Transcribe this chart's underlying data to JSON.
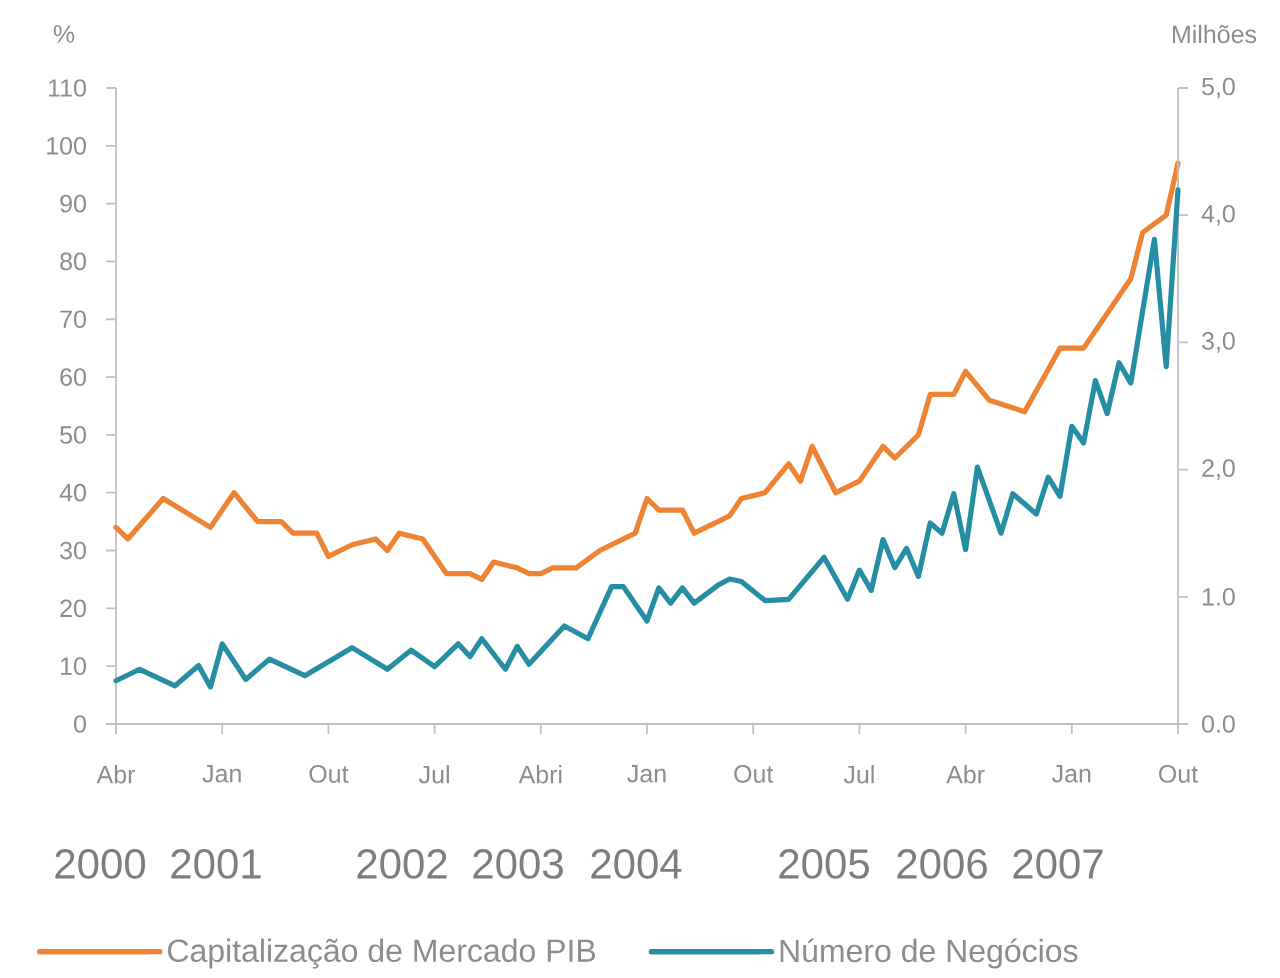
{
  "chart_data": {
    "type": "line",
    "ylabel": "%",
    "y2label": "Milhões",
    "xlim": [
      "2000-04",
      "2007-10"
    ],
    "xticks": [
      {
        "value": "2000-04",
        "label": "Abr"
      },
      {
        "value": "2001-01",
        "label": "Jan"
      },
      {
        "value": "2001-10",
        "label": "Out"
      },
      {
        "value": "2002-07",
        "label": "Jul"
      },
      {
        "value": "2003-04",
        "label": "Abri"
      },
      {
        "value": "2004-01",
        "label": "Jan"
      },
      {
        "value": "2004-10",
        "label": "Out"
      },
      {
        "value": "2005-07",
        "label": "Jul"
      },
      {
        "value": "2006-04",
        "label": "Abr"
      },
      {
        "value": "2007-01",
        "label": "Jan"
      },
      {
        "value": "2007-10",
        "label": "Out"
      }
    ],
    "ylim": [
      0,
      110
    ],
    "yticks": [
      0,
      10,
      20,
      30,
      40,
      50,
      60,
      70,
      80,
      90,
      100,
      110
    ],
    "y2lim": [
      0,
      5
    ],
    "y2ticks": [
      {
        "value": 0,
        "label": "0.0"
      },
      {
        "value": 1,
        "label": "1.0"
      },
      {
        "value": 2,
        "label": "2,0"
      },
      {
        "value": 3,
        "label": "3,0"
      },
      {
        "value": 4,
        "label": "4,0"
      },
      {
        "value": 5,
        "label": "5,0"
      }
    ],
    "annotations": [
      "2000",
      "2001",
      "2002",
      "2003",
      "2004",
      "2005",
      "2006",
      "2007"
    ],
    "legend": "bottom",
    "series": [
      {
        "name": "Capitalização de Mercado PIB",
        "color": "#ee8433",
        "x": [
          "2000-04",
          "2000-05",
          "2000-08",
          "2000-12",
          "2001-02",
          "2001-04",
          "2001-06",
          "2001-07",
          "2001-09",
          "2001-10",
          "2001-12",
          "2002-02",
          "2002-03",
          "2002-04",
          "2002-06",
          "2002-08",
          "2002-10",
          "2002-11",
          "2002-12",
          "2003-02",
          "2003-03",
          "2003-04",
          "2003-05",
          "2003-07",
          "2003-09",
          "2003-10",
          "2003-12",
          "2004-01",
          "2004-02",
          "2004-04",
          "2004-05",
          "2004-08",
          "2004-09",
          "2004-11",
          "2005-01",
          "2005-02",
          "2005-03",
          "2005-05",
          "2005-07",
          "2005-09",
          "2005-10",
          "2005-12",
          "2006-01",
          "2006-03",
          "2006-04",
          "2006-06",
          "2006-09",
          "2006-12",
          "2007-02",
          "2007-06",
          "2007-07",
          "2007-09",
          "2007-10"
        ],
        "values": [
          34,
          32,
          39,
          34,
          40,
          35,
          35,
          33,
          33,
          29,
          31,
          32,
          30,
          33,
          32,
          26,
          26,
          25,
          28,
          27,
          26,
          26,
          27,
          27,
          30,
          31,
          33,
          39,
          37,
          37,
          33,
          36,
          39,
          40,
          45,
          42,
          48,
          40,
          42,
          48,
          46,
          50,
          57,
          57,
          61,
          56,
          54,
          65,
          65,
          77,
          85,
          88,
          97
        ]
      },
      {
        "name": "Número de Negócios",
        "color": "#268ea3",
        "axis": "y2",
        "x": [
          "2000-04",
          "2000-06",
          "2000-09",
          "2000-11",
          "2000-12",
          "2001-01",
          "2001-03",
          "2001-05",
          "2001-08",
          "2001-12",
          "2002-03",
          "2002-05",
          "2002-07",
          "2002-09",
          "2002-10",
          "2002-11",
          "2003-01",
          "2003-02",
          "2003-03",
          "2003-06",
          "2003-08",
          "2003-10",
          "2003-11",
          "2004-01",
          "2004-02",
          "2004-03",
          "2004-04",
          "2004-05",
          "2004-07",
          "2004-08",
          "2004-09",
          "2004-11",
          "2005-01",
          "2005-04",
          "2005-06",
          "2005-07",
          "2005-08",
          "2005-09",
          "2005-10",
          "2005-11",
          "2005-12",
          "2006-01",
          "2006-02",
          "2006-03",
          "2006-04",
          "2006-05",
          "2006-07",
          "2006-08",
          "2006-10",
          "2006-11",
          "2006-12",
          "2007-01",
          "2007-02",
          "2007-03",
          "2007-04",
          "2007-05",
          "2007-06",
          "2007-08",
          "2007-09",
          "2007-10"
        ],
        "values": [
          0.34,
          0.43,
          0.3,
          0.46,
          0.29,
          0.63,
          0.35,
          0.51,
          0.38,
          0.6,
          0.43,
          0.58,
          0.45,
          0.63,
          0.53,
          0.67,
          0.43,
          0.61,
          0.47,
          0.77,
          0.67,
          1.08,
          1.08,
          0.81,
          1.07,
          0.95,
          1.07,
          0.95,
          1.09,
          1.14,
          1.12,
          0.97,
          0.98,
          1.31,
          0.98,
          1.21,
          1.05,
          1.45,
          1.23,
          1.38,
          1.16,
          1.58,
          1.5,
          1.81,
          1.37,
          2.02,
          1.5,
          1.81,
          1.65,
          1.94,
          1.79,
          2.34,
          2.21,
          2.7,
          2.44,
          2.84,
          2.68,
          3.81,
          2.81,
          4.2
        ]
      }
    ]
  }
}
